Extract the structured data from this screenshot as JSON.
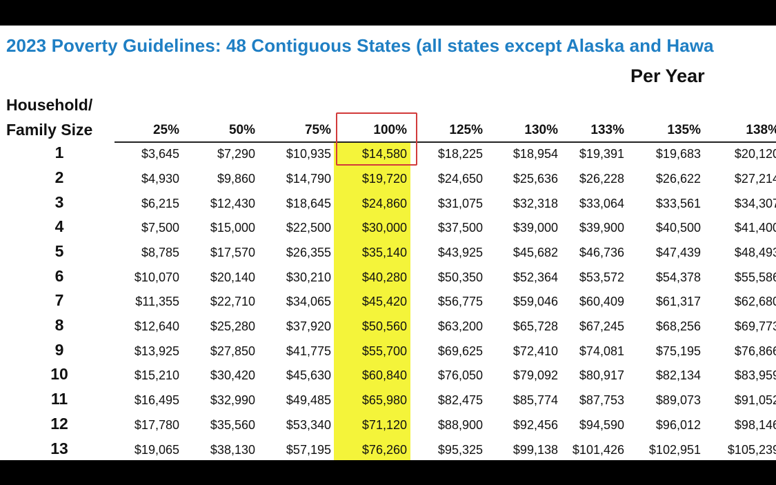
{
  "title": "2023 Poverty Guidelines: 48 Contiguous States (all states except Alaska and Hawa",
  "per_year_label": "Per Year",
  "row_header_line1": "Household/",
  "row_header_line2": "Family Size",
  "highlight_color": "#f4f43a",
  "outline_color": "#d23a3a",
  "title_color": "#1f7fc4",
  "columns": [
    "25%",
    "50%",
    "75%",
    "100%",
    "125%",
    "130%",
    "133%",
    "135%",
    "138%"
  ],
  "rows": [
    {
      "size": "1",
      "values": [
        "$3,645",
        "$7,290",
        "$10,935",
        "$14,580",
        "$18,225",
        "$18,954",
        "$19,391",
        "$19,683",
        "$20,120"
      ]
    },
    {
      "size": "2",
      "values": [
        "$4,930",
        "$9,860",
        "$14,790",
        "$19,720",
        "$24,650",
        "$25,636",
        "$26,228",
        "$26,622",
        "$27,214"
      ]
    },
    {
      "size": "3",
      "values": [
        "$6,215",
        "$12,430",
        "$18,645",
        "$24,860",
        "$31,075",
        "$32,318",
        "$33,064",
        "$33,561",
        "$34,307"
      ]
    },
    {
      "size": "4",
      "values": [
        "$7,500",
        "$15,000",
        "$22,500",
        "$30,000",
        "$37,500",
        "$39,000",
        "$39,900",
        "$40,500",
        "$41,400"
      ]
    },
    {
      "size": "5",
      "values": [
        "$8,785",
        "$17,570",
        "$26,355",
        "$35,140",
        "$43,925",
        "$45,682",
        "$46,736",
        "$47,439",
        "$48,493"
      ]
    },
    {
      "size": "6",
      "values": [
        "$10,070",
        "$20,140",
        "$30,210",
        "$40,280",
        "$50,350",
        "$52,364",
        "$53,572",
        "$54,378",
        "$55,586"
      ]
    },
    {
      "size": "7",
      "values": [
        "$11,355",
        "$22,710",
        "$34,065",
        "$45,420",
        "$56,775",
        "$59,046",
        "$60,409",
        "$61,317",
        "$62,680"
      ]
    },
    {
      "size": "8",
      "values": [
        "$12,640",
        "$25,280",
        "$37,920",
        "$50,560",
        "$63,200",
        "$65,728",
        "$67,245",
        "$68,256",
        "$69,773"
      ]
    },
    {
      "size": "9",
      "values": [
        "$13,925",
        "$27,850",
        "$41,775",
        "$55,700",
        "$69,625",
        "$72,410",
        "$74,081",
        "$75,195",
        "$76,866"
      ]
    },
    {
      "size": "10",
      "values": [
        "$15,210",
        "$30,420",
        "$45,630",
        "$60,840",
        "$76,050",
        "$79,092",
        "$80,917",
        "$82,134",
        "$83,959"
      ]
    },
    {
      "size": "11",
      "values": [
        "$16,495",
        "$32,990",
        "$49,485",
        "$65,980",
        "$82,475",
        "$85,774",
        "$87,753",
        "$89,073",
        "$91,052"
      ]
    },
    {
      "size": "12",
      "values": [
        "$17,780",
        "$35,560",
        "$53,340",
        "$71,120",
        "$88,900",
        "$92,456",
        "$94,590",
        "$96,012",
        "$98,146"
      ]
    },
    {
      "size": "13",
      "values": [
        "$19,065",
        "$38,130",
        "$57,195",
        "$76,260",
        "$95,325",
        "$99,138",
        "$101,426",
        "$102,951",
        "$105,239"
      ]
    }
  ]
}
